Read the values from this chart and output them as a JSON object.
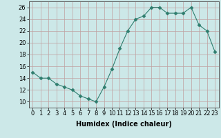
{
  "x": [
    0,
    1,
    2,
    3,
    4,
    5,
    6,
    7,
    8,
    9,
    10,
    11,
    12,
    13,
    14,
    15,
    16,
    17,
    18,
    19,
    20,
    21,
    22,
    23
  ],
  "y": [
    15,
    14,
    14,
    13,
    12.5,
    12,
    11,
    10.5,
    10,
    12.5,
    15.5,
    19,
    22,
    24,
    24.5,
    26,
    26,
    25,
    25,
    25,
    26,
    23,
    22,
    18.5
  ],
  "line_color": "#2e7d6e",
  "marker": "D",
  "marker_size": 2.5,
  "bg_color": "#cce8e8",
  "grid_color": "#c0a0a0",
  "xlabel": "Humidex (Indice chaleur)",
  "ylim": [
    9,
    27
  ],
  "yticks": [
    10,
    12,
    14,
    16,
    18,
    20,
    22,
    24,
    26
  ],
  "xticks": [
    0,
    1,
    2,
    3,
    4,
    5,
    6,
    7,
    8,
    9,
    10,
    11,
    12,
    13,
    14,
    15,
    16,
    17,
    18,
    19,
    20,
    21,
    22,
    23
  ],
  "label_fontsize": 7,
  "tick_fontsize": 6
}
